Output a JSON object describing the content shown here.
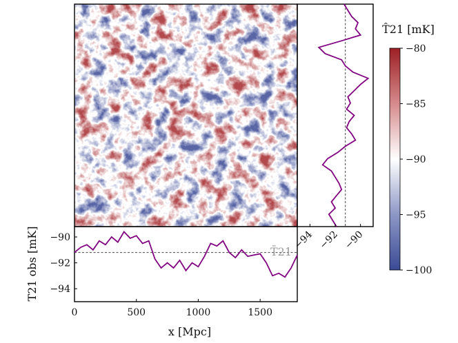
{
  "chart_data": [
    {
      "type": "heatmap",
      "panel": "main-map",
      "title": "",
      "xlim": [
        0,
        1800
      ],
      "ylim": [
        0,
        1800
      ],
      "cmap": "diverging blue-white-red",
      "colorbar": {
        "label": "T̂21 [mK]",
        "range": [
          -80,
          -100
        ],
        "ticks": [
          -80,
          -85,
          -90,
          -95,
          -100
        ],
        "tick_labels": [
          "−80",
          "−85",
          "−90",
          "−95",
          "−100"
        ],
        "colors": {
          "high": "#9c1f24",
          "mid": "#ffffff",
          "low": "#3a4a95"
        }
      }
    },
    {
      "type": "line",
      "panel": "bottom-profile",
      "xlabel": "x [Mpc]",
      "ylabel": "T21 obs [mK]",
      "xlim": [
        0,
        1800
      ],
      "ylim": [
        -95,
        -89.2
      ],
      "xticks": [
        0,
        500,
        1000,
        1500
      ],
      "xtick_labels": [
        "0",
        "500",
        "1000",
        "1500"
      ],
      "yticks": [
        -90,
        -92,
        -94
      ],
      "ytick_labels": [
        "−90",
        "−92",
        "−94"
      ],
      "mean_line": {
        "value": -91.2,
        "label": "T̄21"
      },
      "x": [
        0,
        50,
        100,
        150,
        200,
        250,
        300,
        350,
        400,
        450,
        500,
        550,
        600,
        650,
        700,
        750,
        800,
        850,
        900,
        950,
        1000,
        1050,
        1100,
        1150,
        1200,
        1250,
        1300,
        1350,
        1400,
        1450,
        1500,
        1550,
        1600,
        1650,
        1700,
        1750,
        1800
      ],
      "y": [
        -91.2,
        -90.8,
        -90.6,
        -91.0,
        -90.3,
        -90.6,
        -90.0,
        -90.4,
        -89.6,
        -90.1,
        -89.9,
        -90.5,
        -90.3,
        -91.7,
        -92.4,
        -92.0,
        -92.4,
        -91.8,
        -92.6,
        -92.0,
        -92.3,
        -91.5,
        -90.5,
        -90.7,
        -90.3,
        -91.2,
        -91.6,
        -91.0,
        -91.5,
        -91.4,
        -91.3,
        -92.0,
        -93.0,
        -92.8,
        -93.1,
        -92.4,
        -91.4
      ]
    },
    {
      "type": "line",
      "panel": "right-profile",
      "orientation": "vertical",
      "xlim": [
        -95,
        -89
      ],
      "xticks": [
        -94,
        -92,
        -90
      ],
      "xtick_labels": [
        "−94",
        "−92",
        "−90"
      ],
      "mean_line": {
        "value": -91.2
      },
      "y": [
        0,
        50,
        100,
        150,
        200,
        250,
        300,
        350,
        400,
        450,
        500,
        550,
        600,
        650,
        700,
        750,
        800,
        850,
        900,
        950,
        1000,
        1050,
        1100,
        1150,
        1200,
        1250,
        1300,
        1350,
        1400,
        1450,
        1500,
        1550,
        1600,
        1650,
        1700,
        1750,
        1800
      ],
      "x": [
        -91.3,
        -91.0,
        -90.7,
        -90.2,
        -90.4,
        -90.0,
        -91.6,
        -93.3,
        -92.8,
        -91.5,
        -91.2,
        -90.6,
        -89.4,
        -90.0,
        -90.5,
        -91.0,
        -90.8,
        -91.1,
        -90.5,
        -90.9,
        -91.1,
        -90.7,
        -90.4,
        -91.2,
        -91.8,
        -92.6,
        -93.0,
        -92.3,
        -92.0,
        -91.7,
        -91.5,
        -91.9,
        -92.3,
        -92.0,
        -92.5,
        -92.2,
        -91.9
      ]
    }
  ]
}
